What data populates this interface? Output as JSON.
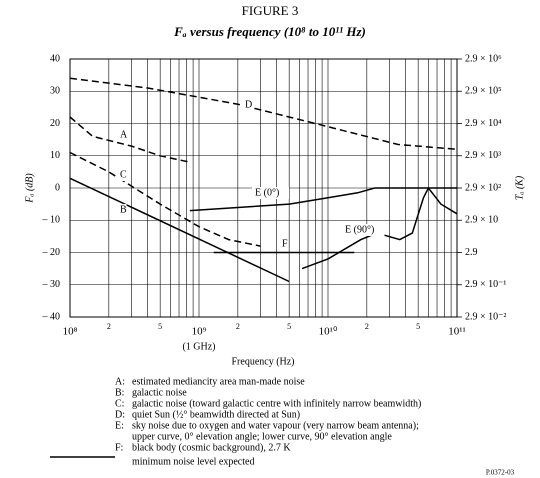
{
  "chart_data": {
    "type": "line",
    "title": "FIGURE 3",
    "subtitle": "Fₐ versus frequency (10⁸ to 10¹¹ Hz)",
    "x_label": "Frequency (Hz)",
    "y_label": "Fₐ (dB)",
    "y2_label": "Tₐ (K)",
    "x_annotation": "(1 GHz)",
    "x_log": true,
    "y2_log": true,
    "grid": true,
    "xlim": [
      100000000,
      100000000000
    ],
    "xticks": [
      {
        "value": 100000000,
        "label": "10⁸"
      },
      {
        "value": 200000000,
        "label": "2"
      },
      {
        "value": 500000000,
        "label": "5"
      },
      {
        "value": 1000000000,
        "label": "10⁹"
      },
      {
        "value": 2000000000,
        "label": "2"
      },
      {
        "value": 5000000000,
        "label": "5"
      },
      {
        "value": 10000000000,
        "label": "10¹⁰"
      },
      {
        "value": 20000000000,
        "label": "2"
      },
      {
        "value": 50000000000,
        "label": "5"
      },
      {
        "value": 100000000000,
        "label": "10¹¹"
      }
    ],
    "x_minor_ticks": [
      300000000,
      400000000,
      600000000,
      700000000,
      800000000,
      900000000,
      3000000000,
      4000000000,
      6000000000,
      7000000000,
      8000000000,
      9000000000,
      30000000000,
      40000000000,
      60000000000,
      70000000000,
      80000000000,
      90000000000
    ],
    "ylim": [
      -40,
      40
    ],
    "yticks": [
      40,
      30,
      20,
      10,
      0,
      {
        "value": -10,
        "label": "– 10"
      },
      {
        "value": -20,
        "label": "– 20"
      },
      {
        "value": -30,
        "label": "– 30"
      },
      {
        "value": -40,
        "label": "– 40"
      }
    ],
    "y2lim": [
      0.029,
      2900000
    ],
    "y2ticks": [
      {
        "value": 2900000,
        "label": "2.9 × 10⁶"
      },
      {
        "value": 290000,
        "label": "2.9 × 10⁵"
      },
      {
        "value": 29000,
        "label": "2.9 × 10⁴"
      },
      {
        "value": 2900,
        "label": "2.9 × 10³"
      },
      {
        "value": 290,
        "label": "2.9 × 10²"
      },
      {
        "value": 29,
        "label": "2.9 × 10"
      },
      {
        "value": 2.9,
        "label": "2.9"
      },
      {
        "value": 0.29,
        "label": "2.9 × 10⁻¹"
      },
      {
        "value": 0.029,
        "label": "2.9 × 10⁻²"
      }
    ],
    "series": [
      {
        "name": "A",
        "color": "#000000",
        "dashed": true,
        "x": [
          100000000,
          150000000,
          300000000,
          500000000,
          850000000
        ],
        "values": [
          22,
          16,
          13,
          10,
          8
        ]
      },
      {
        "name": "B",
        "color": "#000000",
        "dashed": false,
        "x": [
          100000000,
          5000000000
        ],
        "values": [
          3,
          -29
        ]
      },
      {
        "name": "C",
        "color": "#000000",
        "dashed": true,
        "x": [
          100000000,
          200000000,
          500000000,
          1000000000,
          1700000000,
          3000000000
        ],
        "values": [
          11,
          5,
          -5,
          -12,
          -16,
          -18
        ]
      },
      {
        "name": "D",
        "color": "#000000",
        "dashed": true,
        "x": [
          100000000,
          400000000,
          2000000000,
          10000000000,
          35000000000,
          100000000000
        ],
        "values": [
          34,
          31,
          26,
          19,
          13.5,
          12
        ]
      },
      {
        "name": "E (0°)",
        "color": "#000000",
        "dashed": false,
        "x": [
          850000000,
          5000000000,
          10000000000,
          17000000000,
          23000000000,
          100000000000
        ],
        "values": [
          -7,
          -5,
          -3,
          -1.5,
          0,
          0
        ]
      },
      {
        "name": "E (90°)",
        "color": "#000000",
        "dashed": false,
        "x": [
          6300000000,
          10000000000,
          18000000000,
          24000000000,
          36000000000,
          45000000000,
          55000000000,
          60000000000,
          75000000000,
          100000000000
        ],
        "values": [
          -25,
          -22,
          -16,
          -14,
          -16,
          -14,
          -3,
          0,
          -5,
          -8
        ]
      },
      {
        "name": "F",
        "color": "#000000",
        "dashed": false,
        "x": [
          1300000000,
          16000000000
        ],
        "values": [
          -20,
          -20
        ]
      }
    ],
    "notes": [
      {
        "key": "A:",
        "lines": [
          "estimated mediancity area man-made noise"
        ]
      },
      {
        "key": "B:",
        "lines": [
          "galactic noise"
        ]
      },
      {
        "key": "C:",
        "lines": [
          "galactic noise (toward galactic centre with infinitely narrow beamwidth)"
        ]
      },
      {
        "key": "D:",
        "lines": [
          "quiet Sun (½° beamwidth directed at Sun)"
        ]
      },
      {
        "key": "E:",
        "lines": [
          "sky noise due to oxygen and water vapour (very narrow beam antenna);",
          "upper curve, 0° elevation angle; lower curve, 90° elevation angle"
        ]
      },
      {
        "key": "F:",
        "lines": [
          "black body (cosmic background), 2.7 K"
        ]
      }
    ],
    "line_note": "minimum noise level expected",
    "figure_code": "P.0372-03"
  }
}
